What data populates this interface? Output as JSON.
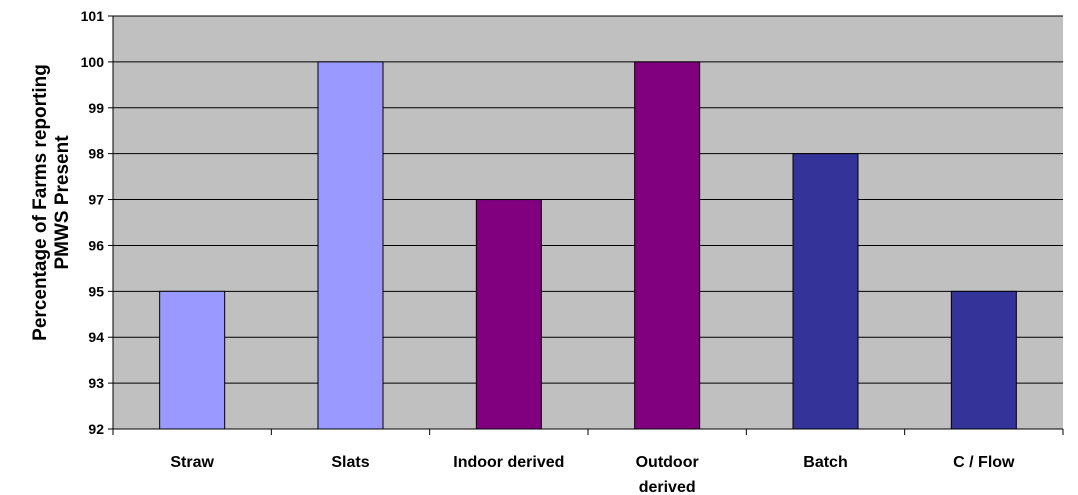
{
  "chart_data": {
    "type": "bar",
    "categories": [
      "Straw",
      "Slats",
      "Indoor derived",
      "Outdoor derived",
      "Batch",
      "C / Flow"
    ],
    "category_lines": [
      [
        "Straw"
      ],
      [
        "Slats"
      ],
      [
        "Indoor derived"
      ],
      [
        "Outdoor",
        "derived"
      ],
      [
        "Batch"
      ],
      [
        "C / Flow"
      ]
    ],
    "values": [
      95,
      100,
      97,
      100,
      98,
      95
    ],
    "bar_colors": [
      "#9999ff",
      "#9999ff",
      "#800080",
      "#800080",
      "#333399",
      "#333399"
    ],
    "ylabel_lines": [
      "Percentage of Farms reporting",
      "PMWS Present"
    ],
    "ylim": [
      92,
      101
    ],
    "yticks": [
      92,
      93,
      94,
      95,
      96,
      97,
      98,
      99,
      100,
      101
    ],
    "grid": true,
    "legend": "none",
    "plot_background": "#c0c0c0"
  }
}
